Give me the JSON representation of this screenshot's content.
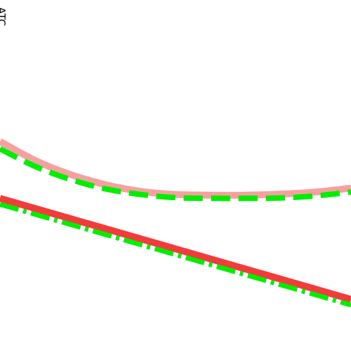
{
  "chart_data": {
    "type": "line",
    "title": "",
    "xlabel": "",
    "ylabel": "...ATC",
    "xlim": [
      0,
      10
    ],
    "ylim": [
      0,
      10
    ],
    "grid": false,
    "series": [
      {
        "color": "#f7a0a0",
        "line_style": "solid",
        "x": [
          0,
          1,
          2,
          3,
          4,
          5,
          6,
          7,
          8,
          9,
          10
        ],
        "y": [
          5.97,
          5.43,
          5.03,
          4.74,
          4.55,
          4.46,
          4.44,
          4.44,
          4.47,
          4.53,
          4.64
        ]
      },
      {
        "color": "#00ee00",
        "line_style": "dashed",
        "x": [
          0,
          1,
          2,
          3,
          4,
          5,
          6,
          7,
          8,
          9,
          10
        ],
        "y": [
          5.76,
          5.26,
          4.89,
          4.62,
          4.46,
          4.37,
          4.35,
          4.35,
          4.36,
          4.42,
          4.53
        ]
      },
      {
        "color": "#f23c3c",
        "line_style": "solid",
        "x": [
          0,
          10
        ],
        "y": [
          4.35,
          1.47
        ]
      },
      {
        "color": "#00ee00",
        "line_style": "dash-dot",
        "x": [
          0,
          10
        ],
        "y": [
          4.18,
          1.31
        ]
      }
    ]
  }
}
